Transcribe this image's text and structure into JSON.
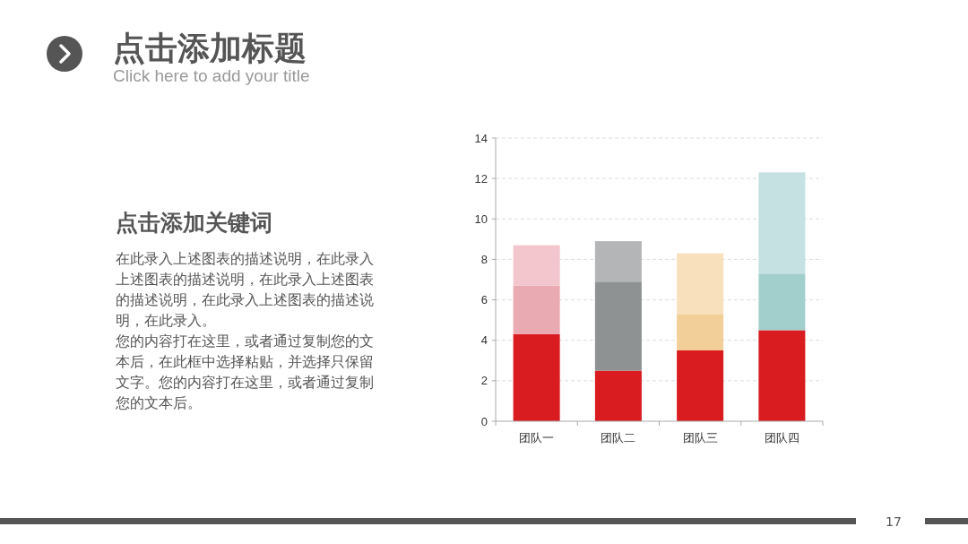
{
  "chart_data": {
    "type": "bar",
    "stacked": true,
    "title": "点击添加标题",
    "subtitle": "Click here to add your title",
    "annotations": [
      "点击添加关键词",
      "在此录入上述图表的描述说明，在此录入上述图表的描述说明，在此录入上述图表的描述说明，在此录入上述图表的描述说明，在此录入。",
      "您的内容打在这里，或者通过复制您的文本后，在此框中选择粘贴，并选择只保留文字。您的内容打在这里，或者通过复制您的文本后。",
      "17"
    ],
    "categories": [
      "团队一",
      "团队二",
      "团队三",
      "团队四"
    ],
    "series": [
      {
        "colors": [
          "#d91c1f",
          "#d91c1f",
          "#d91c1f",
          "#d91c1f"
        ],
        "values": [
          4.3,
          2.5,
          3.5,
          4.5
        ]
      },
      {
        "colors": [
          "#eaaab2",
          "#8f9293",
          "#f2cf98",
          "#a2cfcc"
        ],
        "values": [
          2.4,
          4.4,
          1.8,
          2.8
        ]
      },
      {
        "colors": [
          "#f3c6cd",
          "#b4b5b6",
          "#f8e0bd",
          "#c5e1e2"
        ],
        "values": [
          2.0,
          2.0,
          3.0,
          5.0
        ]
      }
    ],
    "ylim": [
      0,
      14
    ],
    "yticks": [
      0,
      2,
      4,
      6,
      8,
      10,
      12,
      14
    ],
    "grid": "y"
  }
}
